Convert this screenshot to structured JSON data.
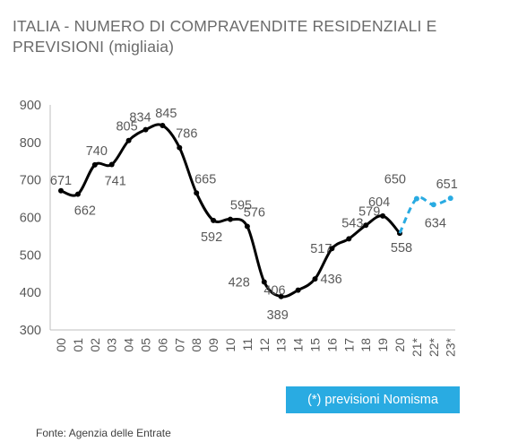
{
  "title": {
    "line1": "ITALIA - NUMERO DI COMPRAVENDITE RESIDENZIALI E",
    "line2": "PREVISIONI (migliaia)"
  },
  "legend_note": "(*) previsioni Nomisma",
  "source": "Fonte: Agenzia delle Entrate",
  "colors": {
    "actual": "#000000",
    "forecast": "#29abe2",
    "text": "#595959",
    "axis": "#bfbfbf"
  },
  "chart_data": {
    "type": "line",
    "title": "ITALIA - NUMERO DI COMPRAVENDITE RESIDENZIALI E PREVISIONI (migliaia)",
    "xlabel": "",
    "ylabel": "",
    "ylim": [
      300,
      900
    ],
    "yticks": [
      300,
      400,
      500,
      600,
      700,
      800,
      900
    ],
    "grid": false,
    "categories": [
      "00",
      "01",
      "02",
      "03",
      "04",
      "05",
      "06",
      "07",
      "08",
      "09",
      "10",
      "11",
      "12",
      "13",
      "14",
      "15",
      "16",
      "17",
      "18",
      "19",
      "20",
      "21*",
      "22*",
      "23*"
    ],
    "series": [
      {
        "style": "solid",
        "values": [
          671,
          662,
          740,
          741,
          805,
          834,
          845,
          786,
          665,
          592,
          595,
          576,
          428,
          389,
          406,
          436,
          517,
          543,
          579,
          604,
          558,
          null,
          null,
          null
        ]
      },
      {
        "style": "dashed",
        "values": [
          null,
          null,
          null,
          null,
          null,
          null,
          null,
          null,
          null,
          null,
          null,
          null,
          null,
          null,
          null,
          null,
          null,
          null,
          null,
          null,
          558,
          650,
          634,
          651
        ]
      }
    ],
    "data_labels": [
      "671",
      "662",
      "740",
      "741",
      "805",
      "834",
      "845",
      "786",
      "665",
      "592",
      "595",
      "576",
      "428",
      "389",
      "406",
      "436",
      "517",
      "543",
      "579",
      "604",
      "558",
      "650",
      "634",
      "651"
    ]
  }
}
